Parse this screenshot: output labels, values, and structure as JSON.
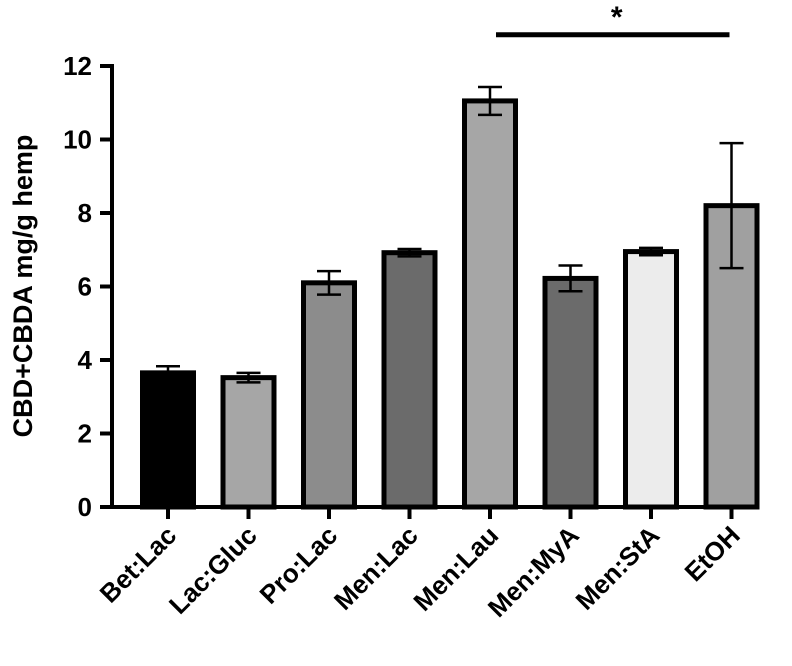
{
  "chart_data": {
    "type": "bar",
    "title": "",
    "xlabel": "",
    "ylabel": "CBD+CBDA mg/g hemp",
    "ylim": [
      0,
      12
    ],
    "yticks": [
      0,
      2,
      4,
      6,
      8,
      10,
      12
    ],
    "grid": false,
    "legend": "none",
    "categories": [
      "Bet:Lac",
      "Lac:Gluc",
      "Pro:Lac",
      "Men:Lac",
      "Men:Lau",
      "Men:MyA",
      "Men:StA",
      "EtOH"
    ],
    "values": [
      3.65,
      3.52,
      6.1,
      6.92,
      11.05,
      6.22,
      6.95,
      8.2
    ],
    "errors": [
      0.18,
      0.13,
      0.32,
      0.1,
      0.38,
      0.35,
      0.1,
      1.7
    ],
    "colors": [
      "#000000",
      "#a6a6a6",
      "#8c8c8c",
      "#6b6b6b",
      "#a6a6a6",
      "#6b6b6b",
      "#ececec",
      "#a0a0a0"
    ],
    "significance": {
      "label": "*",
      "from_category": "Men:Lau",
      "to_category": "EtOH",
      "y": 12.85
    }
  }
}
